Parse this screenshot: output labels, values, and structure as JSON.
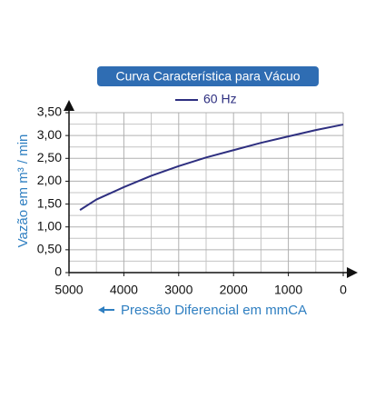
{
  "chart_data": {
    "type": "line",
    "title": "Curva Característica para Vácuo",
    "x_label": "Pressão Diferencial em mmCA",
    "y_label": "Vazão em m³ / min",
    "x": [
      4800,
      4500,
      4000,
      3500,
      3000,
      2500,
      2000,
      1500,
      1000,
      500,
      0
    ],
    "series": [
      {
        "name": "60 Hz",
        "color": "#2e2f80",
        "values": [
          1.37,
          1.6,
          1.87,
          2.12,
          2.33,
          2.52,
          2.68,
          2.84,
          2.98,
          3.12,
          3.24
        ]
      }
    ],
    "xlim": [
      5000,
      0
    ],
    "xticks": [
      5000,
      4000,
      3000,
      2000,
      1000,
      0
    ],
    "x_minor_ticks": [
      4500,
      3500,
      2500,
      1500,
      500
    ],
    "ylim": [
      0,
      3.5
    ],
    "yticks": [
      0,
      {
        "value": 0.5,
        "label": "0,50"
      },
      {
        "value": 1,
        "label": "1,00"
      },
      {
        "value": 1.5,
        "label": "1,50"
      },
      {
        "value": 2,
        "label": "2,00"
      },
      {
        "value": 2.5,
        "label": "2,50"
      },
      {
        "value": 3,
        "label": "3,00"
      },
      {
        "value": 3.5,
        "label": "3,50"
      }
    ],
    "y_minor_ticks": [
      0.25,
      0.75,
      1.25,
      1.75,
      2.25,
      2.75,
      3.25
    ],
    "grid": true
  }
}
